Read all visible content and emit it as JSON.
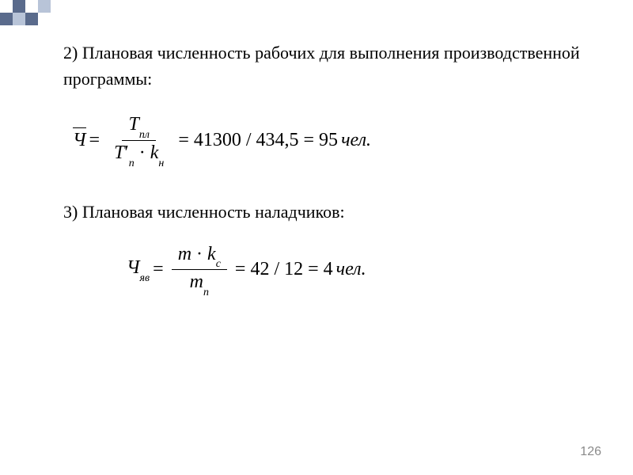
{
  "decoration": {
    "colors": {
      "dark": "#5a6b8c",
      "light": "#b8c4d8",
      "empty": "#ffffff"
    },
    "pattern": [
      [
        "empty",
        "dark",
        "empty",
        "light",
        "empty",
        "empty",
        "empty"
      ],
      [
        "dark",
        "light",
        "dark",
        "empty",
        "empty",
        "empty",
        "empty"
      ]
    ]
  },
  "items": {
    "item2": {
      "text": "2) Плановая численность рабочих для выполнения производственной программы:"
    },
    "item3": {
      "text": "3) Плановая численность наладчиков:"
    }
  },
  "formula1": {
    "lhs": "Ч",
    "numerator_var": "T",
    "numerator_sub": "пл",
    "denom_var1": "T",
    "denom_var1_prime": "′",
    "denom_var1_sub": "п",
    "denom_op": "·",
    "denom_var2": "k",
    "denom_var2_sub": "н",
    "calc": "= 41300 / 434,5 = 95",
    "unit": "чел."
  },
  "formula2": {
    "lhs": "Ч",
    "lhs_sub": "яв",
    "numerator_var1": "m",
    "numerator_op": "·",
    "numerator_var2": "k",
    "numerator_var2_sub": "с",
    "denom_var": "m",
    "denom_sub": "п",
    "calc": "= 42 / 12 = 4",
    "unit": "чел."
  },
  "page_number": "126",
  "text_color": "#000000",
  "background_color": "#ffffff",
  "page_number_color": "#8a8a8a",
  "font_sizes": {
    "body": 22,
    "formula": 24,
    "subscript": 14,
    "page_number": 16
  }
}
